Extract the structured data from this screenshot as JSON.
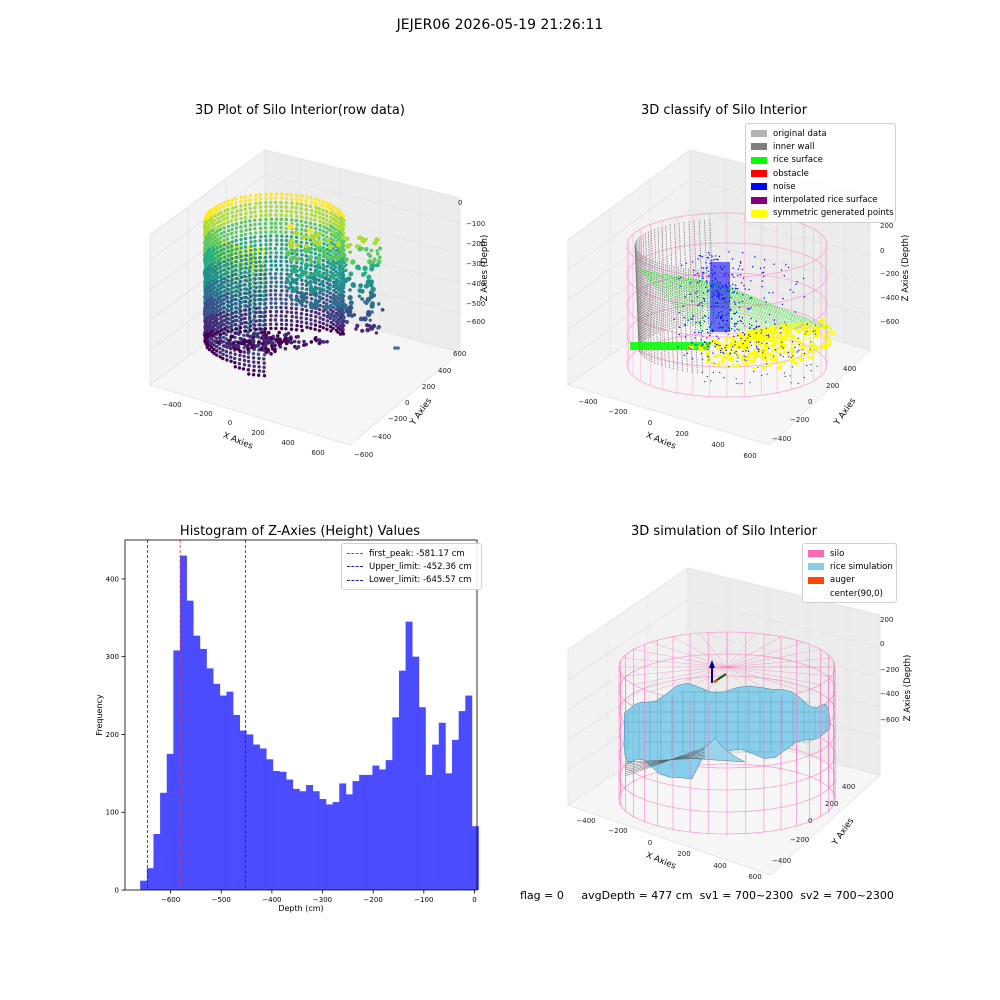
{
  "header": {
    "title": "JEJER06 2026-05-19 21:26:11"
  },
  "status_line": {
    "flag": "flag = 0",
    "avg_depth": "avgDepth = 477 cm",
    "sv1": "sv1 = 700~2300",
    "sv2": "sv2 = 700~2300"
  },
  "chart_data": [
    {
      "type": "scatter",
      "subtype": "3d",
      "title": "3D Plot of Silo Interior(row data)",
      "xlabel": "X Axies",
      "ylabel": "Y Axies",
      "zlabel": "Z Axies (Depth)",
      "x_ticks": [
        "−400",
        "−200",
        "0",
        "200",
        "400",
        "600"
      ],
      "y_ticks": [
        "600",
        "400",
        "200",
        "0",
        "−200",
        "−400",
        "−600"
      ],
      "z_ticks": [
        "0",
        "−100",
        "−200",
        "−300",
        "−400",
        "−500",
        "−600"
      ],
      "colormap": "viridis"
    },
    {
      "type": "scatter",
      "subtype": "3d",
      "title": "3D classify of Silo Interior",
      "x_ticks": [
        "−400",
        "−200",
        "0",
        "200",
        "400",
        "600"
      ],
      "y_ticks": [
        "400",
        "200",
        "0",
        "−200",
        "−400"
      ],
      "z_ticks": [
        "200",
        "0",
        "−200",
        "−400",
        "−600"
      ],
      "xlabel": "X Axies",
      "ylabel": "Y Axies",
      "zlabel": "Z Axies (Depth)",
      "legend": [
        {
          "label": "original data",
          "color": "#b3b3b3"
        },
        {
          "label": "inner wall",
          "color": "#808080"
        },
        {
          "label": "rice surface",
          "color": "#00ff00"
        },
        {
          "label": "obstacle",
          "color": "#ff0000"
        },
        {
          "label": "noise",
          "color": "#0000ff"
        },
        {
          "label": "interpolated rice surface",
          "color": "#800080"
        },
        {
          "label": "symmetric generated points",
          "color": "#ffff00"
        }
      ],
      "legend_position": "top-right"
    },
    {
      "type": "bar",
      "subtype": "histogram",
      "title": "Histogram of Z-Axies (Height) Values",
      "xlabel": "Depth (cm)",
      "ylabel": "Frequency",
      "xlim": [
        -690,
        5
      ],
      "ylim": [
        0,
        450
      ],
      "x_ticks": [
        -600,
        -500,
        -400,
        -300,
        -200,
        -100,
        0
      ],
      "y_ticks": [
        0,
        100,
        200,
        300,
        400
      ],
      "bin_start": -660,
      "bin_width": 13.1,
      "values": [
        12,
        28,
        72,
        125,
        175,
        308,
        430,
        372,
        327,
        310,
        285,
        265,
        250,
        255,
        225,
        205,
        200,
        187,
        182,
        168,
        153,
        152,
        142,
        130,
        127,
        135,
        127,
        117,
        110,
        113,
        137,
        123,
        140,
        148,
        148,
        160,
        155,
        167,
        222,
        282,
        345,
        300,
        235,
        148,
        187,
        215,
        150,
        193,
        230,
        250,
        82
      ],
      "bar_color": "#4b4bff",
      "grid": false,
      "legend_position": "top-right",
      "reference_lines": [
        {
          "label": "first_peak: -581.17 cm",
          "x": -581.17,
          "color": "#ff2a2a"
        },
        {
          "label": "Upper_limit: -452.36 cm",
          "x": -452.36,
          "color": "#1f1fa0"
        },
        {
          "label": "Lower_limit: -645.57 cm",
          "x": -645.57,
          "color": "#1f1fa0"
        }
      ]
    },
    {
      "type": "surface",
      "subtype": "3d",
      "title": "3D simulation of Silo Interior",
      "xlabel": "X Axies",
      "ylabel": "Y Axies",
      "zlabel": "Z Axies (Depth)",
      "x_ticks": [
        "−400",
        "−200",
        "0",
        "200",
        "400",
        "600"
      ],
      "y_ticks": [
        "400",
        "200",
        "0",
        "−200",
        "−400"
      ],
      "z_ticks": [
        "200",
        "0",
        "−200",
        "−400",
        "−600"
      ],
      "legend": [
        {
          "label": "silo",
          "color": "#ff69b4"
        },
        {
          "label": "rice simulation",
          "color": "#87ceeb"
        },
        {
          "label": "auger",
          "color": "#ff4500"
        },
        {
          "label": "center(90,0)",
          "color": ""
        }
      ],
      "legend_position": "top-right"
    }
  ]
}
